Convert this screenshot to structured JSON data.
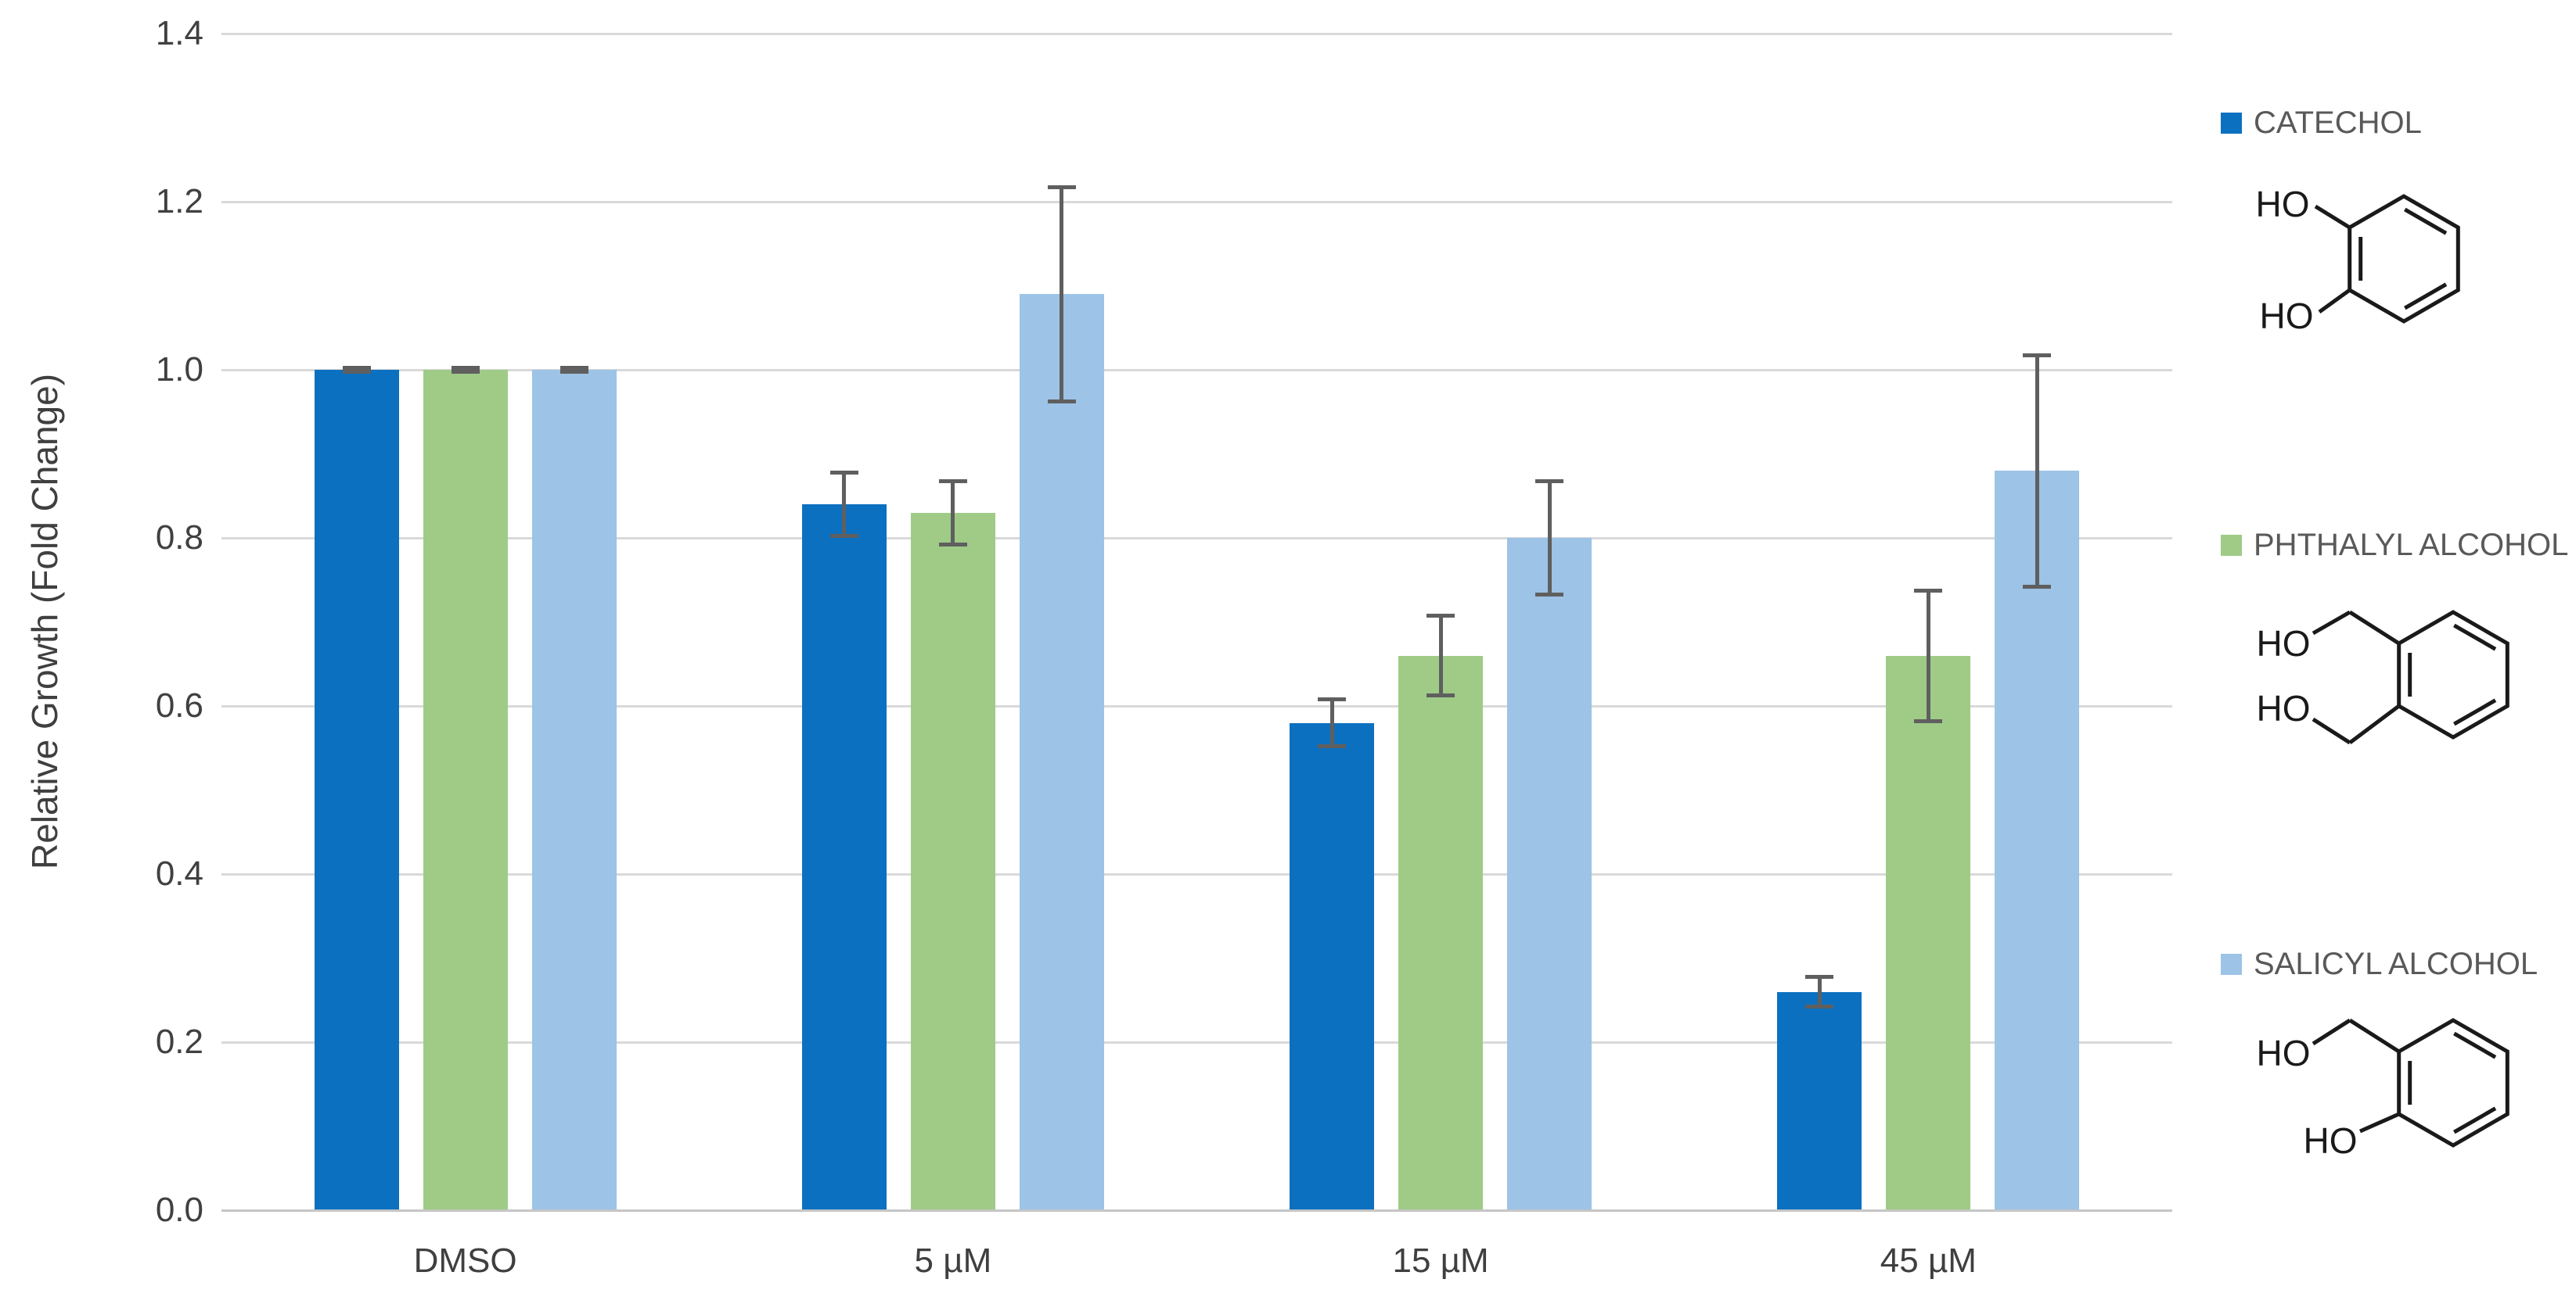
{
  "chart_data": {
    "type": "bar",
    "title": "",
    "xlabel": "",
    "ylabel": "Relative Growth (Fold Change)",
    "categories": [
      "DMSO",
      "5 µM",
      "15 µM",
      "45 µM"
    ],
    "series": [
      {
        "name": "CATECHOL",
        "color": "#0c70c0",
        "values": [
          1.0,
          0.84,
          0.58,
          0.26
        ],
        "errors": [
          0.005,
          0.04,
          0.03,
          0.02
        ]
      },
      {
        "name": "PHTHALYL ALCOHOL",
        "color": "#9fcb87",
        "values": [
          1.0,
          0.83,
          0.66,
          0.66
        ],
        "errors": [
          0.005,
          0.04,
          0.05,
          0.08
        ]
      },
      {
        "name": "SALICYL ALCOHOL",
        "color": "#9dc3e6",
        "values": [
          1.0,
          1.09,
          0.8,
          0.88
        ],
        "errors": [
          0.005,
          0.13,
          0.07,
          0.14
        ]
      }
    ],
    "ylim": [
      0,
      1.4
    ],
    "ytick_step": 0.2,
    "yticks": [
      "0.0",
      "0.2",
      "0.4",
      "0.6",
      "0.8",
      "1.0",
      "1.2",
      "1.4"
    ],
    "grid": true,
    "legend_position": "right"
  },
  "legend": {
    "ho_label": "HO"
  },
  "colors": {
    "gridline": "#d9d9d9",
    "axis_line": "#c6c6c6",
    "error_bar": "#5f5f5f",
    "axis_text": "#3f3f3f",
    "legend_text": "#595959"
  }
}
